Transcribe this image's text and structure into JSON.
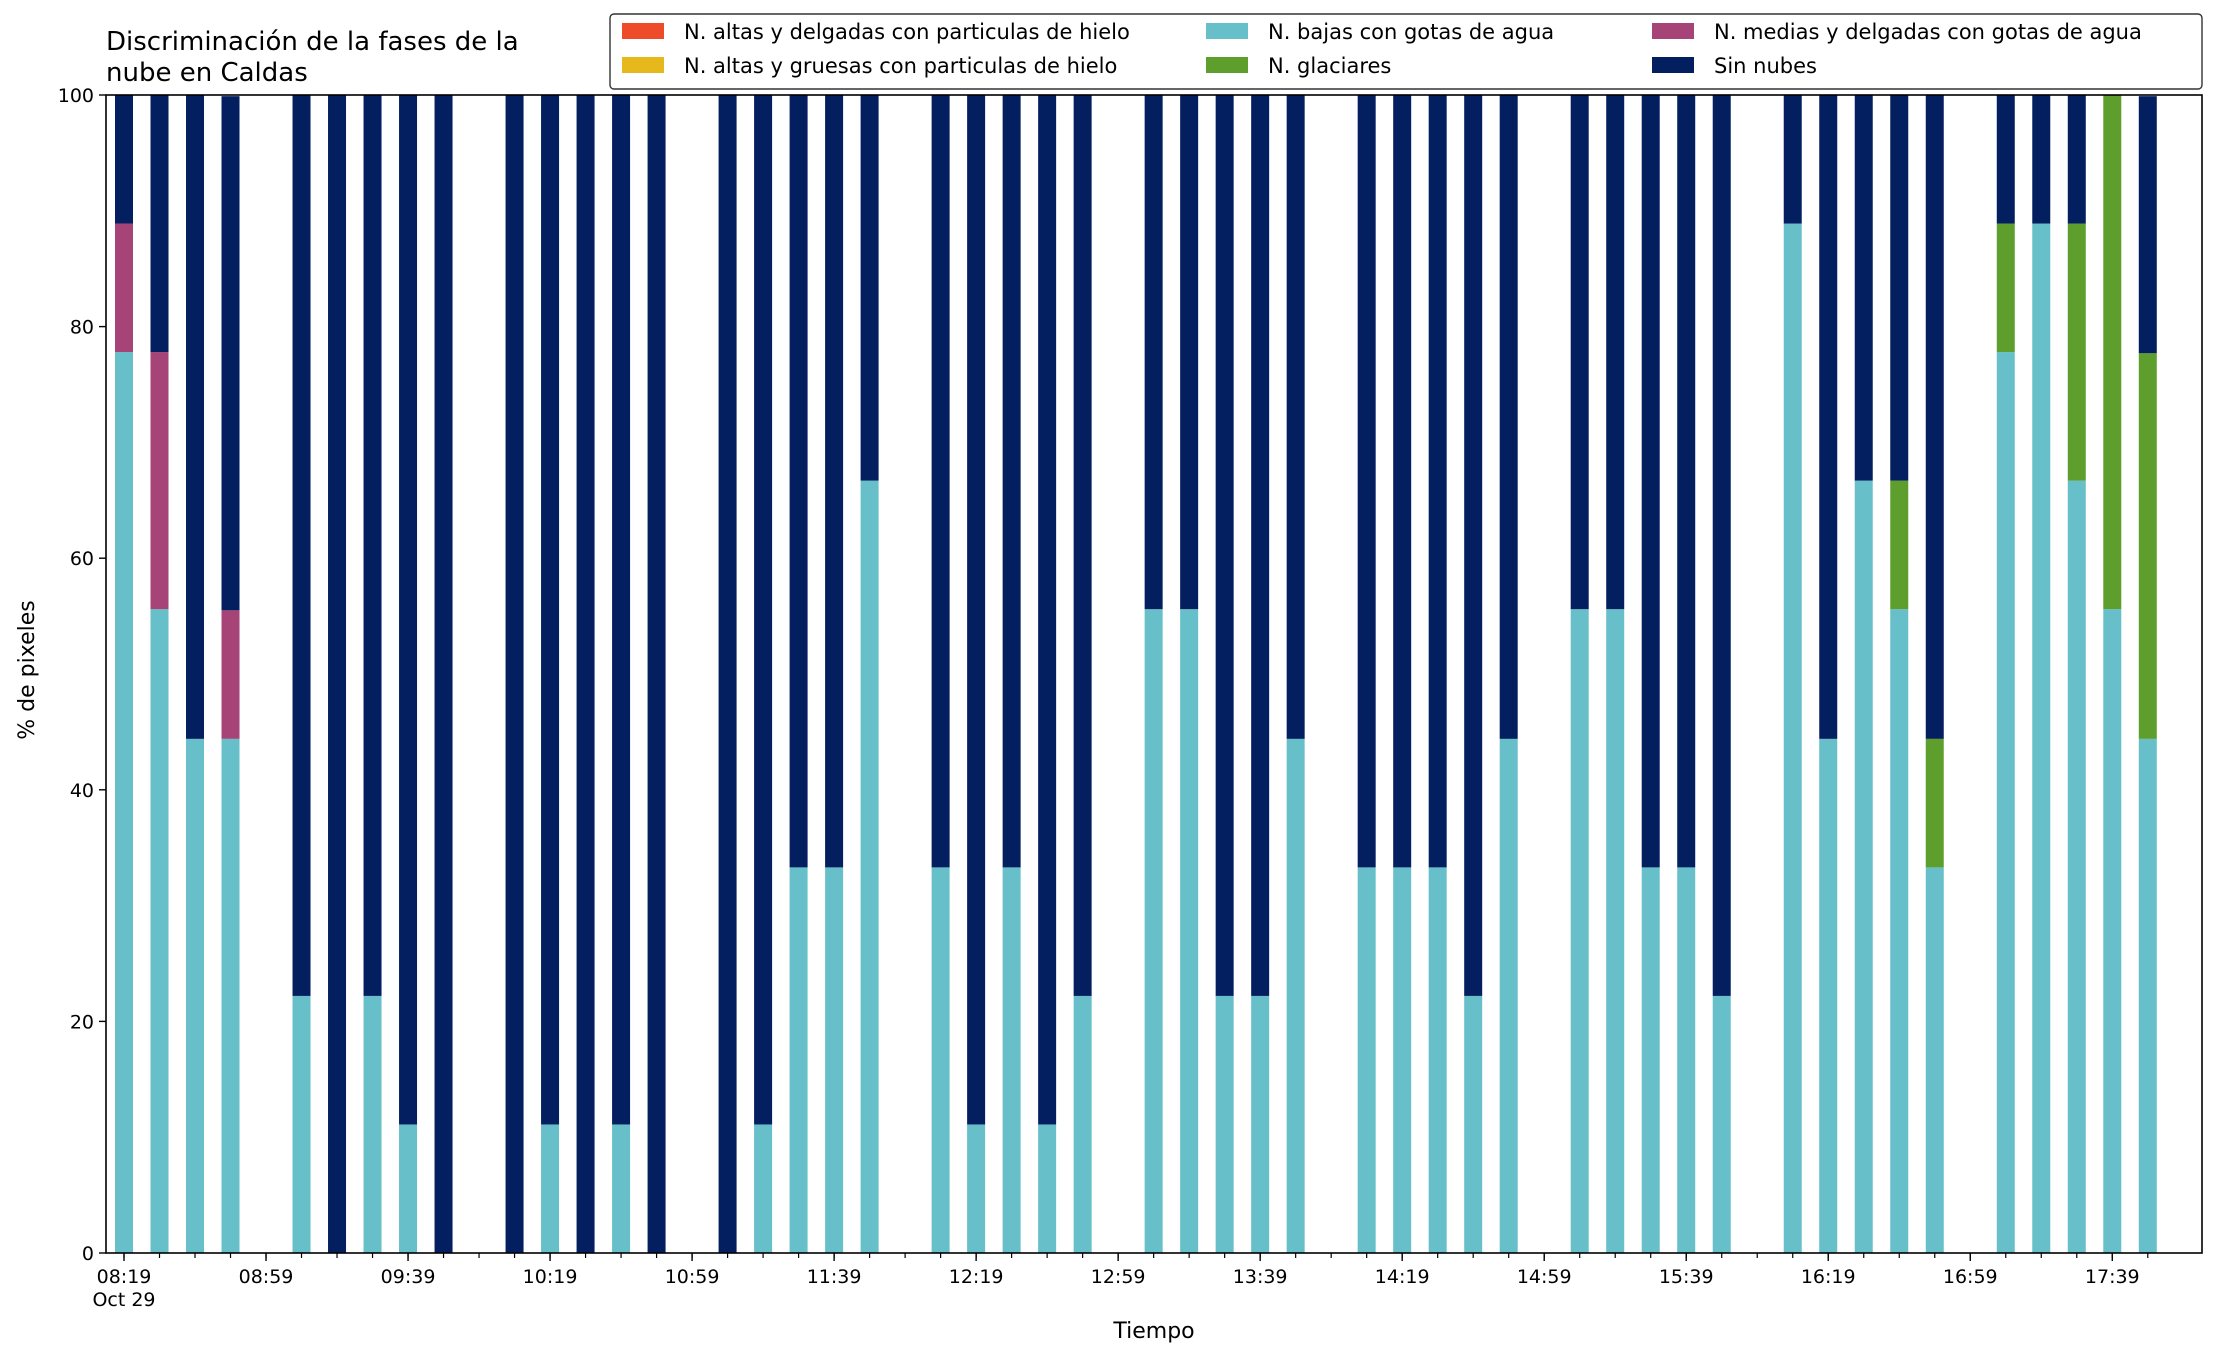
{
  "chart_data": {
    "type": "bar",
    "stacked": true,
    "title": "Discriminación de la fases de la\nnube en Caldas",
    "xlabel": "Tiempo",
    "ylabel": "% de pixeles",
    "ylim": [
      0,
      100
    ],
    "yticks": [
      0,
      20,
      40,
      60,
      80,
      100
    ],
    "x_tick_labels": [
      "08:19",
      "08:59",
      "09:39",
      "10:19",
      "10:59",
      "11:39",
      "12:19",
      "12:59",
      "13:39",
      "14:19",
      "14:59",
      "15:39",
      "16:19",
      "16:59",
      "17:39"
    ],
    "x_date_label": "Oct 29",
    "x_interval_minutes": 10,
    "grid": false,
    "legend_position": "top-right",
    "legend": [
      {
        "name": "N. altas y delgadas con particulas de hielo",
        "color": "#ee4b2b"
      },
      {
        "name": "N. altas y gruesas con particulas de hielo",
        "color": "#e6b81c"
      },
      {
        "name": "N. bajas con gotas de agua",
        "color": "#67bfca"
      },
      {
        "name": "N. glaciares",
        "color": "#5e9e2d"
      },
      {
        "name": "N. medias y delgadas con gotas de agua",
        "color": "#a64478"
      },
      {
        "name": "Sin nubes",
        "color": "#041f5f"
      }
    ],
    "times": [
      "08:19",
      "08:29",
      "08:39",
      "08:49",
      "08:59",
      "09:09",
      "09:19",
      "09:29",
      "09:39",
      "09:49",
      "09:59",
      "10:09",
      "10:19",
      "10:29",
      "10:39",
      "10:49",
      "10:59",
      "11:09",
      "11:19",
      "11:29",
      "11:39",
      "11:49",
      "11:59",
      "12:09",
      "12:19",
      "12:29",
      "12:39",
      "12:49",
      "12:59",
      "13:09",
      "13:19",
      "13:29",
      "13:39",
      "13:49",
      "13:59",
      "14:09",
      "14:19",
      "14:29",
      "14:39",
      "14:49",
      "14:59",
      "15:09",
      "15:19",
      "15:29",
      "15:39",
      "15:49",
      "15:59",
      "16:09",
      "16:19",
      "16:29",
      "16:39",
      "16:49",
      "16:59",
      "17:09",
      "17:19",
      "17:29",
      "17:39",
      "17:49"
    ],
    "series": [
      {
        "name": "N. altas y delgadas con particulas de hielo",
        "values": [
          0,
          0,
          0,
          0,
          null,
          0,
          0,
          0,
          0,
          0,
          null,
          0,
          0,
          0,
          0,
          0,
          null,
          0,
          0,
          0,
          0,
          0,
          null,
          0,
          0,
          0,
          0,
          0,
          null,
          0,
          0,
          0,
          0,
          0,
          null,
          0,
          0,
          0,
          0,
          0,
          null,
          0,
          0,
          0,
          0,
          0,
          null,
          0,
          0,
          0,
          0,
          0,
          null,
          0,
          0,
          0,
          0,
          0
        ]
      },
      {
        "name": "N. altas y gruesas con particulas de hielo",
        "values": [
          0,
          0,
          0,
          0,
          null,
          0,
          0,
          0,
          0,
          0,
          null,
          0,
          0,
          0,
          0,
          0,
          null,
          0,
          0,
          0,
          0,
          0,
          null,
          0,
          0,
          0,
          0,
          0,
          null,
          0,
          0,
          0,
          0,
          0,
          null,
          0,
          0,
          0,
          0,
          0,
          null,
          0,
          0,
          0,
          0,
          0,
          null,
          0,
          0,
          0,
          0,
          0,
          null,
          0,
          0,
          0,
          0,
          0
        ]
      },
      {
        "name": "N. bajas con gotas de agua",
        "values": [
          77.8,
          55.6,
          44.4,
          44.4,
          null,
          22.2,
          0,
          22.2,
          11.1,
          0,
          null,
          0,
          11.1,
          0,
          11.1,
          0,
          null,
          0,
          11.1,
          33.3,
          33.3,
          66.7,
          null,
          33.3,
          11.1,
          33.3,
          11.1,
          22.2,
          null,
          55.6,
          55.6,
          22.2,
          22.2,
          44.4,
          null,
          33.3,
          33.3,
          33.3,
          22.2,
          44.4,
          null,
          55.6,
          55.6,
          33.3,
          33.3,
          22.2,
          null,
          88.9,
          44.4,
          66.7,
          55.6,
          33.3,
          null,
          77.8,
          88.9,
          66.7,
          55.6,
          44.4
        ]
      },
      {
        "name": "N. glaciares",
        "values": [
          0,
          0,
          0,
          0,
          null,
          0,
          0,
          0,
          0,
          0,
          null,
          0,
          0,
          0,
          0,
          0,
          null,
          0,
          0,
          0,
          0,
          0,
          null,
          0,
          0,
          0,
          0,
          0,
          null,
          0,
          0,
          0,
          0,
          0,
          null,
          0,
          0,
          0,
          0,
          0,
          null,
          0,
          0,
          0,
          0,
          0,
          null,
          0,
          0,
          0,
          11.1,
          11.1,
          null,
          11.1,
          0,
          22.2,
          44.4,
          33.3
        ]
      },
      {
        "name": "N. medias y delgadas con gotas de agua",
        "values": [
          11.1,
          22.2,
          0,
          11.1,
          null,
          0,
          0,
          0,
          0,
          0,
          null,
          0,
          0,
          0,
          0,
          0,
          null,
          0,
          0,
          0,
          0,
          0,
          null,
          0,
          0,
          0,
          0,
          0,
          null,
          0,
          0,
          0,
          0,
          0,
          null,
          0,
          0,
          0,
          0,
          0,
          null,
          0,
          0,
          0,
          0,
          0,
          null,
          0,
          0,
          0,
          0,
          0,
          null,
          0,
          0,
          0,
          0,
          0
        ]
      },
      {
        "name": "Sin nubes",
        "values": [
          11.1,
          22.2,
          55.6,
          44.4,
          null,
          77.8,
          100,
          77.8,
          88.9,
          100,
          null,
          100,
          88.9,
          100,
          88.9,
          100,
          null,
          100,
          88.9,
          66.7,
          66.7,
          33.3,
          null,
          66.7,
          88.9,
          66.7,
          88.9,
          77.8,
          null,
          44.4,
          44.4,
          77.8,
          77.8,
          55.6,
          null,
          66.7,
          66.7,
          66.7,
          77.8,
          55.6,
          null,
          44.4,
          44.4,
          66.7,
          66.7,
          77.8,
          null,
          11.1,
          55.6,
          33.3,
          33.3,
          55.6,
          null,
          11.1,
          11.1,
          11.1,
          0,
          22.2
        ]
      }
    ]
  }
}
